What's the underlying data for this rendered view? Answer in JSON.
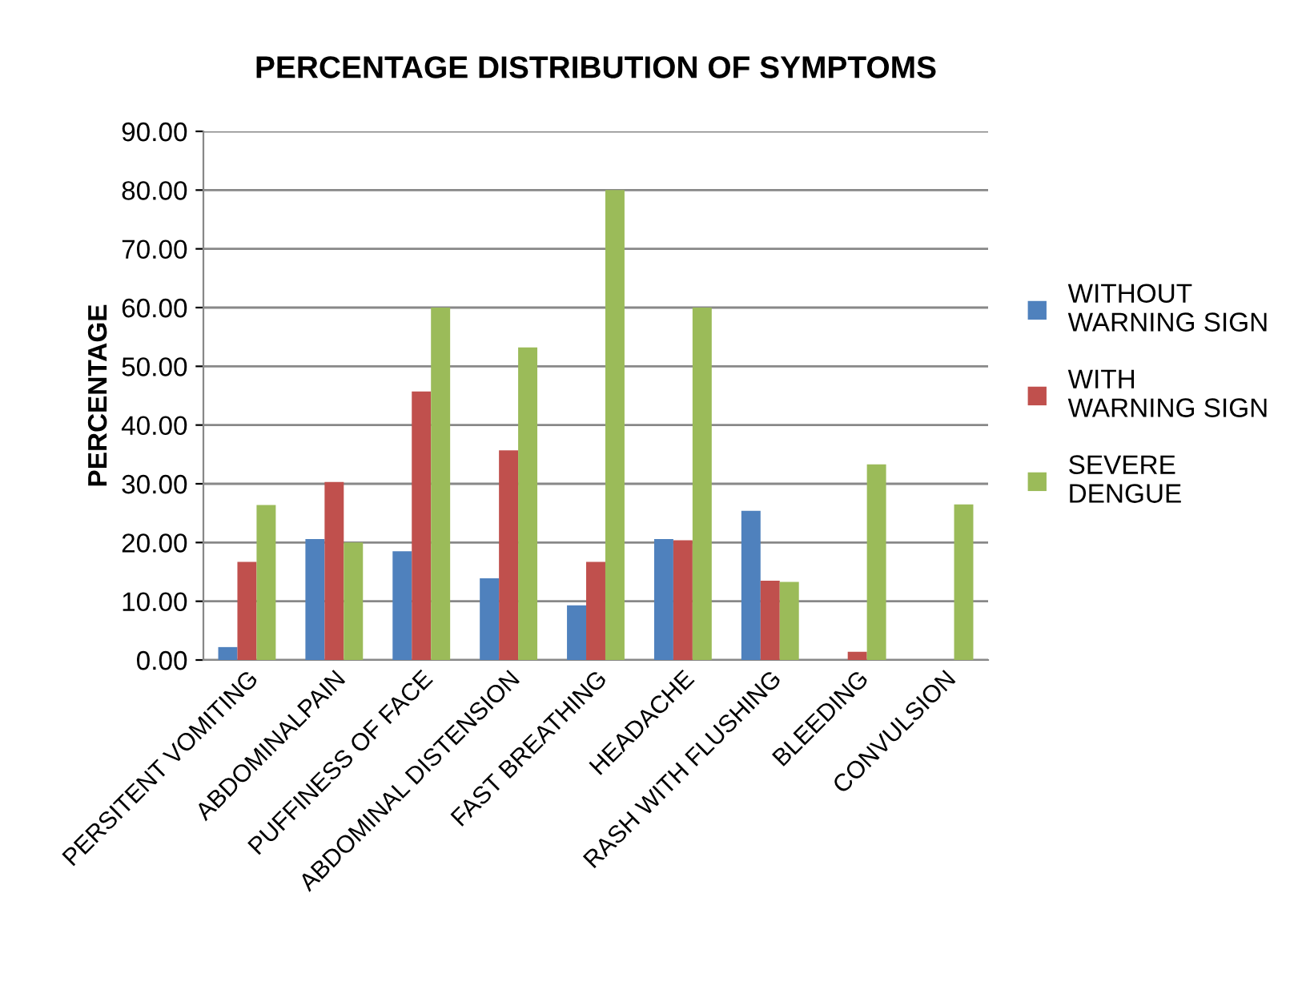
{
  "chart_data": {
    "type": "bar",
    "title": "PERCENTAGE DISTRIBUTION OF SYMPTOMS",
    "ylabel": "PERCENTAGE",
    "categories": [
      "PERSITENT VOMITING",
      "ABDOMINALPAIN",
      "PUFFINESS OF FACE",
      "ABDOMINAL DISTENSION",
      "FAST BREATHING",
      "HEADACHE",
      "RASH WITH FLUSHING",
      "BLEEDING",
      "CONVULSION"
    ],
    "series": [
      {
        "name": "WITHOUT\nWARNING SIGN",
        "color": "#4f81bd",
        "values": [
          2.2,
          20.6,
          18.5,
          13.9,
          9.3,
          20.6,
          25.4,
          0,
          0
        ]
      },
      {
        "name": "WITH\nWARNING SIGN",
        "color": "#c0504d",
        "values": [
          16.7,
          30.3,
          45.7,
          35.7,
          16.7,
          20.4,
          13.5,
          1.4,
          0
        ]
      },
      {
        "name": "SEVERE\nDENGUE",
        "color": "#9bbb59",
        "values": [
          26.4,
          20.0,
          60.0,
          53.2,
          80.0,
          60.0,
          13.3,
          33.3,
          26.5
        ]
      }
    ],
    "ylim": [
      0,
      90
    ],
    "yticks": [
      {
        "value": 0,
        "label": "0.00"
      },
      {
        "value": 10,
        "label": "10.00"
      },
      {
        "value": 20,
        "label": "20.00"
      },
      {
        "value": 30,
        "label": "30.00"
      },
      {
        "value": 40,
        "label": "40.00"
      },
      {
        "value": 50,
        "label": "50.00"
      },
      {
        "value": 60,
        "label": "60.00"
      },
      {
        "value": 70,
        "label": "70.00"
      },
      {
        "value": 80,
        "label": "80.00"
      },
      {
        "value": 90,
        "label": "90.00"
      }
    ],
    "grid": "y",
    "legend": "right"
  }
}
